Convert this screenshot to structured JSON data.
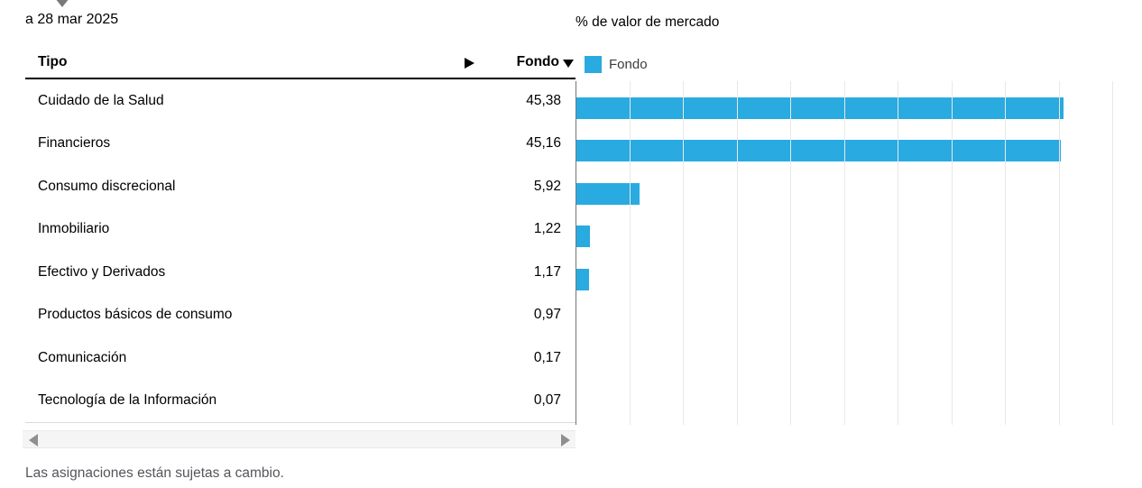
{
  "colors": {
    "bar_blue": "#29AAE1",
    "axis_gray": "#767676",
    "gridline_gray": "#E8E8E8",
    "footer_gray": "#54565B"
  },
  "header": {
    "as_of_date": "a 28 mar 2025",
    "caret_icon": "caret-down"
  },
  "table": {
    "columns": {
      "type_label": "Tipo",
      "fund_label": "Fondo",
      "expand_icon": "triangle-right",
      "sort_icon": "triangle-down",
      "sort_state": "descending"
    },
    "rows": [
      {
        "label": "Cuidado de la Salud",
        "value": "45,38"
      },
      {
        "label": "Financieros",
        "value": "45,16"
      },
      {
        "label": "Consumo discrecional",
        "value": "5,92"
      },
      {
        "label": "Inmobiliario",
        "value": "1,22"
      },
      {
        "label": "Efectivo y Derivados",
        "value": "1,17"
      },
      {
        "label": "Productos básicos de consumo",
        "value": "0,97"
      },
      {
        "label": "Comunicación",
        "value": "0,17"
      },
      {
        "label": "Tecnología de la Información",
        "value": "0,07"
      }
    ],
    "scrollbar": {
      "left_icon": "triangle-left",
      "right_icon": "triangle-right"
    }
  },
  "chart": {
    "title": "% de valor de mercado",
    "legend": [
      {
        "label": "Fondo",
        "color": "#29AAE1"
      }
    ]
  },
  "chart_data": {
    "type": "bar",
    "orientation": "horizontal",
    "title": "% de valor de mercado",
    "categories": [
      "Cuidado de la Salud",
      "Financieros",
      "Consumo discrecional",
      "Inmobiliario",
      "Efectivo y Derivados",
      "Productos básicos de consumo",
      "Comunicación",
      "Tecnología de la Información"
    ],
    "series": [
      {
        "name": "Fondo",
        "values": [
          45.38,
          45.16,
          5.92,
          1.22,
          1.17,
          0.97,
          0.17,
          0.07
        ]
      }
    ],
    "xlim": [
      0,
      50
    ],
    "gridline_step": 5,
    "grid": true,
    "legend_position": "top-left",
    "bar_color": "#29AAE1",
    "min_visible_value": 1
  },
  "footer": {
    "note": "Las asignaciones están sujetas a cambio."
  }
}
